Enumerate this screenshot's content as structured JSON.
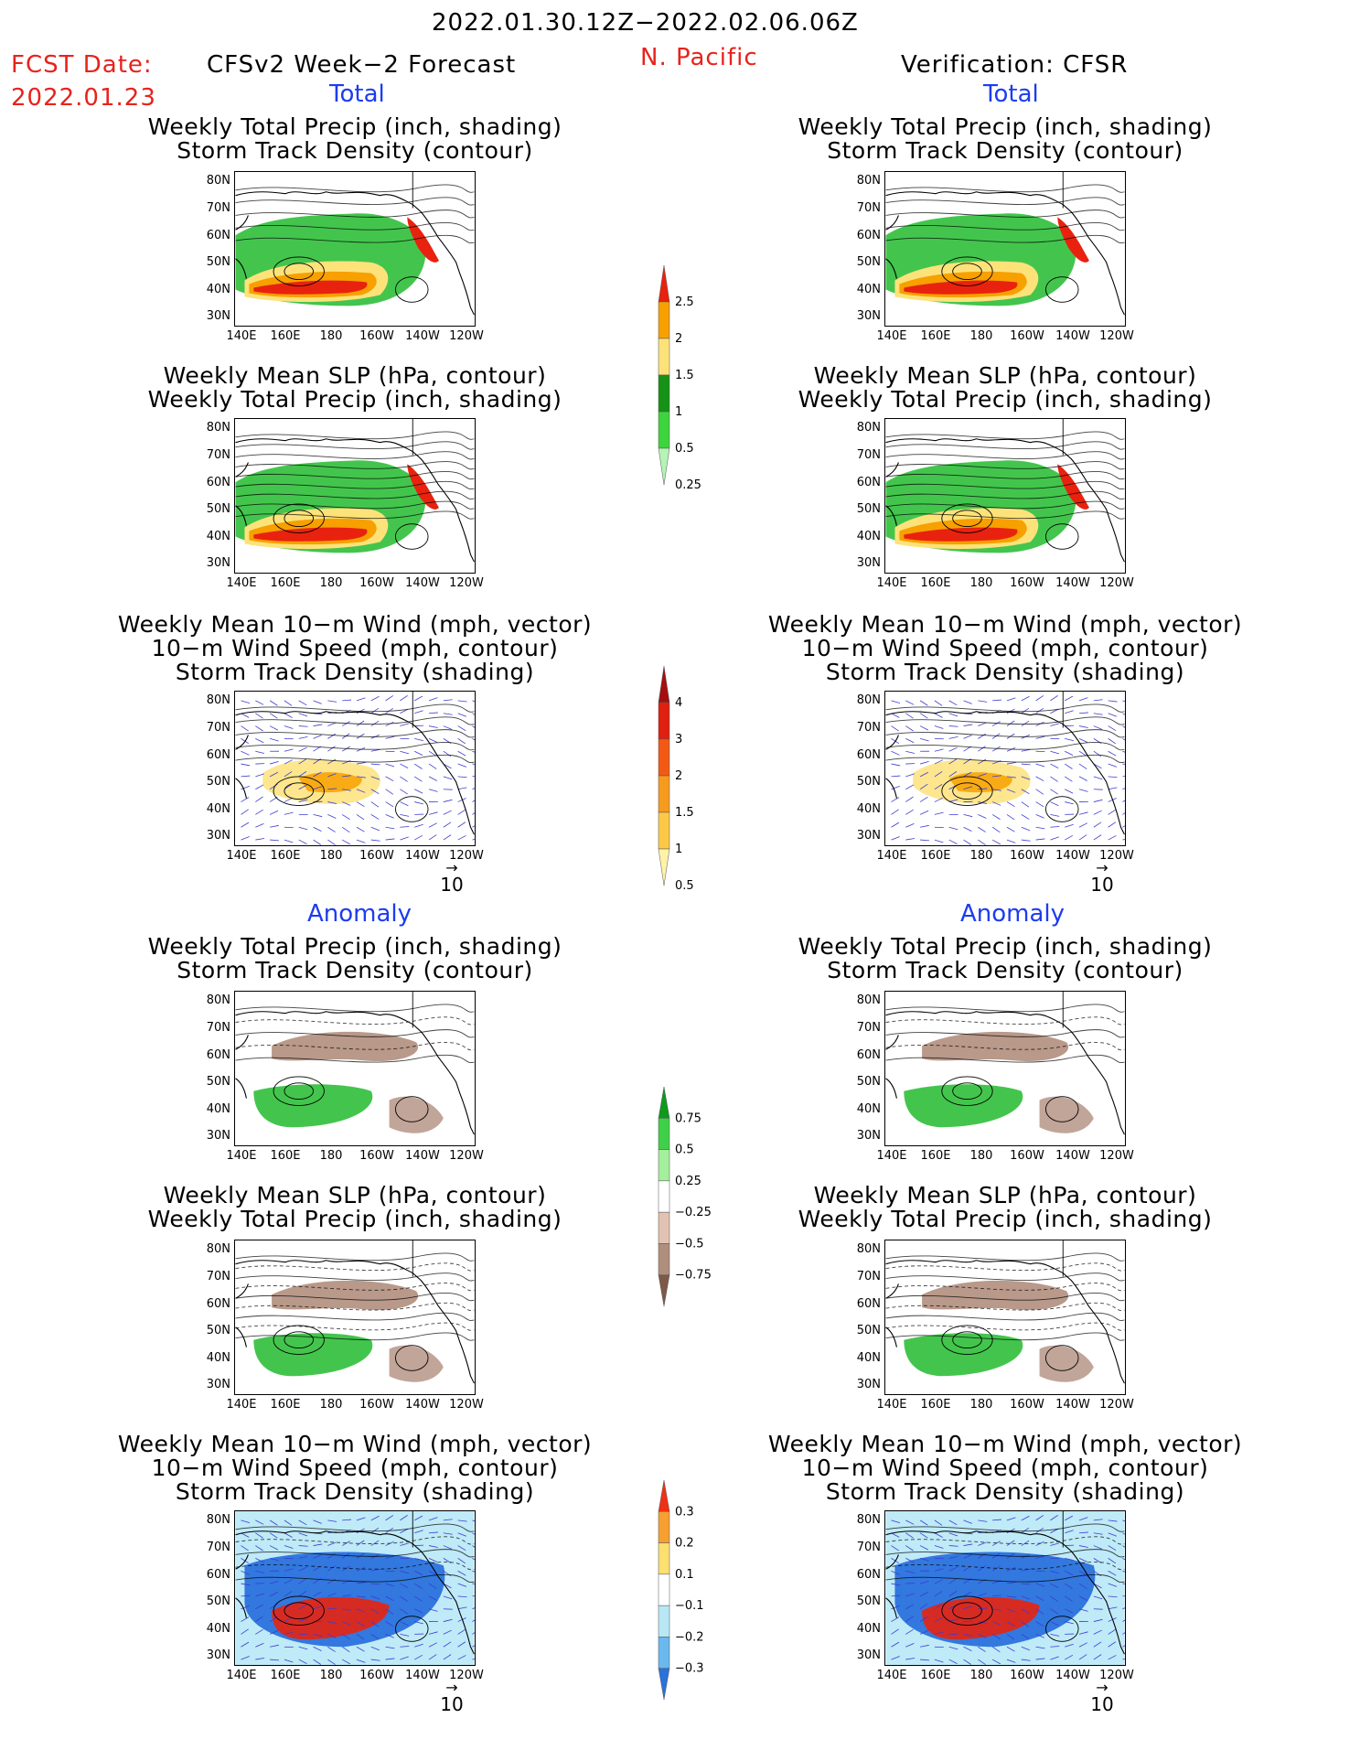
{
  "header": {
    "date_range": "2022.01.30.12Z−2022.02.06.06Z",
    "fcst_date_label": "FCST Date:",
    "fcst_date_value": "2022.01.23",
    "region": "N. Pacific",
    "left_title": "CFSv2 Week−2 Forecast",
    "right_title": "Verification: CFSR"
  },
  "sections": {
    "total": "Total",
    "anomaly": "Anomaly"
  },
  "panel_titles": {
    "precip_storm": [
      "Weekly Total Precip (inch, shading)",
      "Storm Track Density (contour)"
    ],
    "slp_precip": [
      "Weekly Mean SLP (hPa, contour)",
      "Weekly Total Precip (inch, shading)"
    ],
    "wind_storm": [
      "Weekly Mean 10−m Wind (mph, vector)",
      "10−m Wind Speed (mph, contour)",
      "Storm Track Density (shading)"
    ]
  },
  "axes": {
    "lat_labels": [
      "80N",
      "70N",
      "60N",
      "50N",
      "40N",
      "30N"
    ],
    "lon_labels": [
      "140E",
      "160E",
      "180",
      "160W",
      "140W",
      "120W"
    ],
    "vector_ref": "10"
  },
  "colorbars": {
    "total_precip": {
      "labels": [
        "2.5",
        "2",
        "1.5",
        "1",
        "0.5",
        "0.25"
      ],
      "colors": [
        "#e8220e",
        "#f7a000",
        "#fde27a",
        "#169216",
        "#3ed43e",
        "#b4f4b4"
      ]
    },
    "total_storm": {
      "labels": [
        "4",
        "3",
        "2",
        "1.5",
        "1",
        "0.5"
      ],
      "colors": [
        "#a50f0f",
        "#e02010",
        "#f25a14",
        "#f79b1e",
        "#fcc846",
        "#fff3a8"
      ]
    },
    "anom_precip": {
      "labels": [
        "0.75",
        "0.5",
        "0.25",
        "−0.25",
        "−0.5",
        "−0.75"
      ],
      "colors": [
        "#0f9a1e",
        "#3fcf48",
        "#a4ef9c",
        "#ffffff",
        "#e2c2b2",
        "#b08e7d",
        "#7d5a48"
      ]
    },
    "anom_storm": {
      "labels": [
        "0.3",
        "0.2",
        "0.1",
        "−0.1",
        "−0.2",
        "−0.3"
      ],
      "colors": [
        "#ee3214",
        "#f7a030",
        "#fce070",
        "#ffffff",
        "#b8e8f6",
        "#6ab8ee",
        "#2a72dc"
      ]
    }
  },
  "map_colors": {
    "green": "#2fbf3a",
    "dark_green": "#129b1c",
    "red": "#e8220e",
    "orange": "#f7a000",
    "yellow": "#fde27a",
    "brown": "#a77f6d",
    "blue": "#2a72dc",
    "lightblue": "#b8e8f6",
    "vector": "#3b3bd4"
  }
}
